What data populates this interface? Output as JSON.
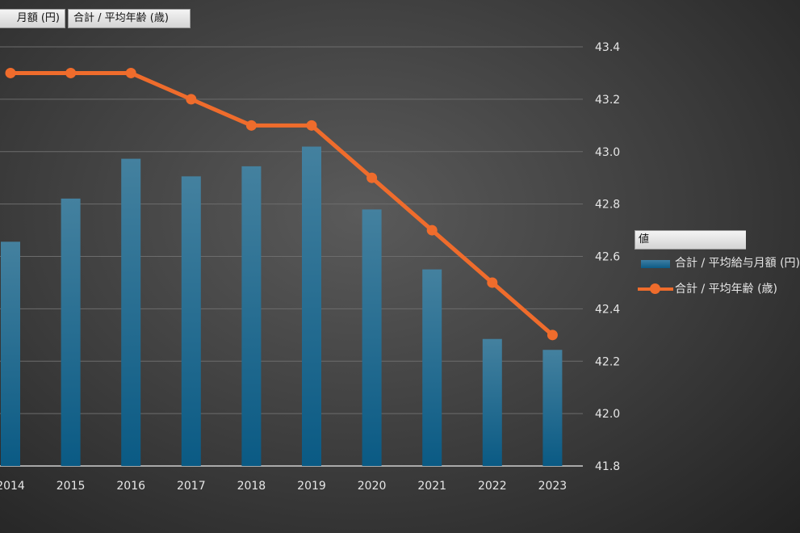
{
  "field_buttons": {
    "left": "月額 (円)",
    "right": "合計 / 平均年齢 (歳)"
  },
  "legend": {
    "header": "値",
    "items": [
      {
        "label": "合計 / 平均給与月額 (円)"
      },
      {
        "label": "合計 / 平均年齢 (歳)"
      }
    ]
  },
  "colors": {
    "bar_top": "#44819f",
    "bar_bottom": "#0a5a84",
    "line": "#ef6c2c",
    "grid": "#6c6c6c",
    "tick_text": "#e6e6e6"
  },
  "chart_data": {
    "type": "bar+line",
    "categories": [
      "2014",
      "2015",
      "2016",
      "2017",
      "2018",
      "2019",
      "2020",
      "2021",
      "2022",
      "2023"
    ],
    "series": [
      {
        "name": "合計 / 平均給与月額 (円)",
        "type": "bar",
        "axis": "left",
        "relative_height": [
          0.535,
          0.638,
          0.733,
          0.691,
          0.715,
          0.762,
          0.612,
          0.469,
          0.303,
          0.277
        ]
      },
      {
        "name": "合計 / 平均年齢 (歳)",
        "type": "line",
        "axis": "right",
        "values": [
          43.3,
          43.3,
          43.3,
          43.2,
          43.1,
          43.1,
          42.9,
          42.7,
          42.5,
          42.3
        ]
      }
    ],
    "y2_range": [
      41.8,
      43.4
    ],
    "y2_ticks": [
      "41.8",
      "42.0",
      "42.2",
      "42.4",
      "42.6",
      "42.8",
      "43.0",
      "43.2",
      "43.4"
    ],
    "grid": true,
    "legend_position": "right"
  }
}
